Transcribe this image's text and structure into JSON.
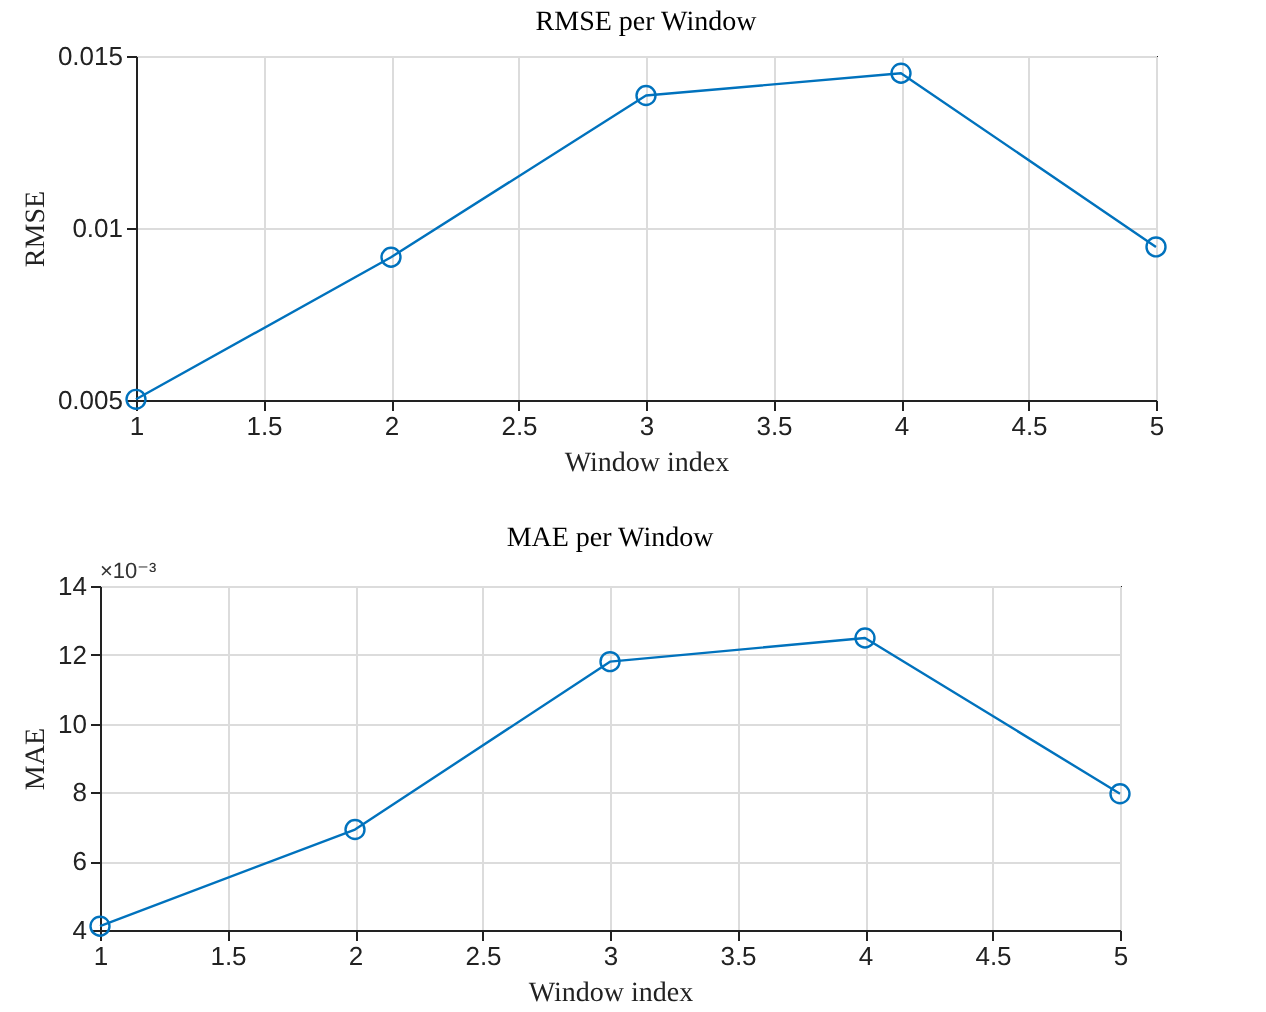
{
  "chart_data": [
    {
      "type": "line",
      "title": "RMSE per Window",
      "xlabel": "Window index",
      "ylabel": "RMSE",
      "x": [
        1,
        2,
        3,
        4,
        5
      ],
      "series": [
        {
          "color": "#0072bd",
          "values": [
            0.00502,
            0.00915,
            0.01385,
            0.0145,
            0.00945
          ]
        }
      ],
      "xlim": [
        1,
        5
      ],
      "xticks": [
        1,
        1.5,
        2,
        2.5,
        3,
        3.5,
        4,
        4.5,
        5
      ],
      "ylim": [
        0.005,
        0.015
      ],
      "yticks": [
        0.005,
        0.01,
        0.015
      ],
      "grid": true,
      "marker": "circle",
      "line_style": "solid"
    },
    {
      "type": "line",
      "title": "MAE per Window",
      "xlabel": "Window index",
      "ylabel": "MAE",
      "x": [
        1,
        2,
        3,
        4,
        5
      ],
      "series": [
        {
          "color": "#0072bd",
          "values": [
            4.11,
            6.92,
            11.8,
            12.49,
            7.96
          ]
        }
      ],
      "xlim": [
        1,
        5
      ],
      "xticks": [
        1,
        1.5,
        2,
        2.5,
        3,
        3.5,
        4,
        4.5,
        5
      ],
      "ylim": [
        4,
        14
      ],
      "yticks": [
        4,
        6,
        8,
        10,
        12,
        14
      ],
      "annotations": [
        "×10⁻³"
      ],
      "grid": true,
      "marker": "circle",
      "line_style": "solid"
    }
  ]
}
